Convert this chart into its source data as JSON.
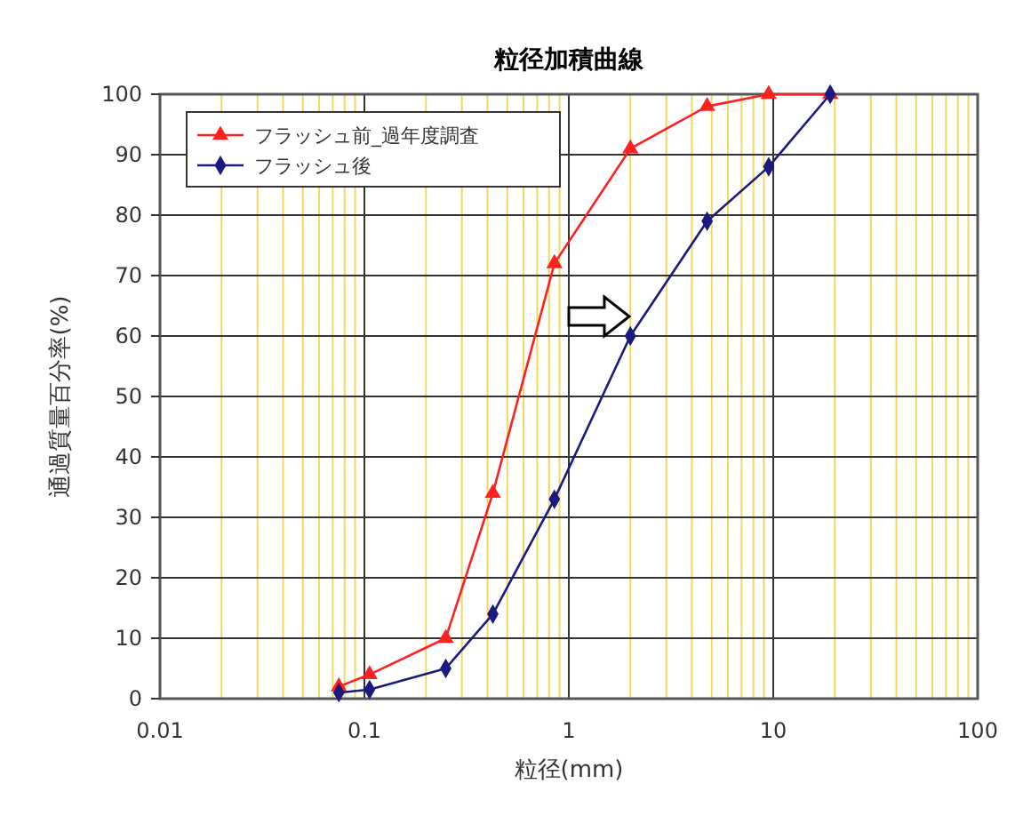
{
  "chart_data": {
    "type": "line",
    "title": "粒径加積曲線",
    "xlabel": "粒径(mm)",
    "ylabel": "通過質量百分率(%)",
    "log": "x",
    "grid": true,
    "legend": "top left",
    "xlim": [
      0.01,
      100
    ],
    "xticks": [
      0.01,
      {
        "value": 0.02,
        "label": null
      },
      {
        "value": 0.03,
        "label": null
      },
      {
        "value": 0.04,
        "label": null
      },
      {
        "value": 0.05,
        "label": null
      },
      {
        "value": 0.06,
        "label": null
      },
      {
        "value": 0.07,
        "label": null
      },
      {
        "value": 0.08,
        "label": null
      },
      {
        "value": 0.09,
        "label": null
      },
      0.1,
      {
        "value": 0.2,
        "label": null
      },
      {
        "value": 0.3,
        "label": null
      },
      {
        "value": 0.4,
        "label": null
      },
      {
        "value": 0.5,
        "label": null
      },
      {
        "value": 0.6,
        "label": null
      },
      {
        "value": 0.7,
        "label": null
      },
      {
        "value": 0.8,
        "label": null
      },
      {
        "value": 0.9,
        "label": null
      },
      1,
      {
        "value": 2,
        "label": null
      },
      {
        "value": 3,
        "label": null
      },
      {
        "value": 4,
        "label": null
      },
      {
        "value": 5,
        "label": null
      },
      {
        "value": 6,
        "label": null
      },
      {
        "value": 7,
        "label": null
      },
      {
        "value": 8,
        "label": null
      },
      {
        "value": 9,
        "label": null
      },
      10,
      {
        "value": 20,
        "label": null
      },
      {
        "value": 30,
        "label": null
      },
      {
        "value": 40,
        "label": null
      },
      {
        "value": 50,
        "label": null
      },
      {
        "value": 60,
        "label": null
      },
      {
        "value": 70,
        "label": null
      },
      {
        "value": 80,
        "label": null
      },
      {
        "value": 90,
        "label": null
      },
      100
    ],
    "ylim": [
      0,
      100
    ],
    "yticks": [
      0,
      10,
      20,
      30,
      40,
      50,
      60,
      70,
      80,
      90,
      100
    ],
    "series": [
      {
        "name": "フラッシュ前_過年度調査",
        "color": "#ff2020",
        "marker": "triangle",
        "x": [
          0.075,
          0.106,
          0.25,
          0.425,
          0.85,
          2,
          4.75,
          9.5,
          19
        ],
        "values": [
          2,
          4,
          10,
          34,
          72,
          91,
          98,
          100,
          100
        ]
      },
      {
        "name": "フラッシュ後",
        "color": "#1a1a80",
        "marker": "diamond",
        "x": [
          0.075,
          0.106,
          0.25,
          0.425,
          0.85,
          2,
          4.75,
          9.5,
          19
        ],
        "values": [
          1,
          1.5,
          5,
          14,
          33,
          60,
          79,
          88,
          100
        ]
      }
    ]
  }
}
